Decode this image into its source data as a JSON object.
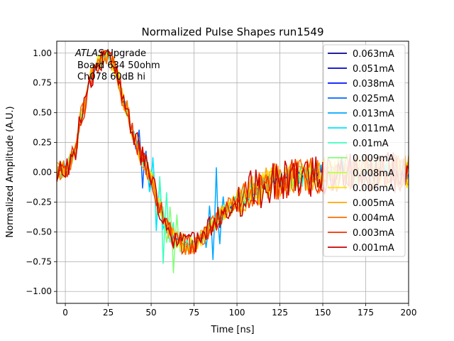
{
  "chart_data": {
    "type": "line",
    "title": "Normalized Pulse Shapes run1549",
    "xlabel": "Time [ns]",
    "ylabel": "Normalized Amplitude (A.U.)",
    "xlim": [
      -5,
      200
    ],
    "ylim": [
      -1.1,
      1.1
    ],
    "xticks": [
      0,
      25,
      50,
      75,
      100,
      125,
      150,
      175,
      200
    ],
    "yticks": [
      -1.0,
      -0.75,
      -0.5,
      -0.25,
      0.0,
      0.25,
      0.5,
      0.75,
      1.0
    ],
    "xtick_labels": [
      "0",
      "25",
      "50",
      "75",
      "100",
      "125",
      "150",
      "175",
      "200"
    ],
    "ytick_labels": [
      "−1.00",
      "−0.75",
      "−0.50",
      "−0.25",
      "0.00",
      "0.25",
      "0.50",
      "0.75",
      "1.00"
    ],
    "grid": true,
    "legend_position": "top-right",
    "annotation": {
      "line1_italic": "ATLAS",
      "line1_rest": " Upgrade",
      "line2": "Board 634 50ohm",
      "line3": "Ch078 60dB hi"
    },
    "series": [
      {
        "name": "0.063mA",
        "color": "#00008f",
        "dip": null
      },
      {
        "name": "0.051mA",
        "color": "#0000cc",
        "dip": null
      },
      {
        "name": "0.038mA",
        "color": "#0010ff",
        "dip": null
      },
      {
        "name": "0.025mA",
        "color": "#0064ff",
        "dip": {
          "t": 45,
          "amp": -0.25
        }
      },
      {
        "name": "0.013mA",
        "color": "#00a8ff",
        "dip": {
          "t": 88,
          "amp": 0.42
        }
      },
      {
        "name": "0.011mA",
        "color": "#00e4ff",
        "dip": {
          "t": 53,
          "amp": -0.3
        }
      },
      {
        "name": "0.01mA",
        "color": "#3cffbc",
        "dip": {
          "t": 57,
          "amp": -0.4
        }
      },
      {
        "name": "0.009mA",
        "color": "#80ff78",
        "dip": {
          "t": 63,
          "amp": -0.35
        }
      },
      {
        "name": "0.008mA",
        "color": "#bcff3c",
        "dip": null
      },
      {
        "name": "0.006mA",
        "color": "#ffe600",
        "dip": null
      },
      {
        "name": "0.005mA",
        "color": "#ffaa00",
        "dip": null
      },
      {
        "name": "0.004mA",
        "color": "#ff6e00",
        "dip": null
      },
      {
        "name": "0.003mA",
        "color": "#f03000",
        "dip": null
      },
      {
        "name": "0.001mA",
        "color": "#c80000",
        "dip": null
      }
    ],
    "pulse_template": {
      "t": [
        -5,
        0,
        5,
        10,
        15,
        20,
        23,
        25,
        28,
        30,
        35,
        40,
        45,
        50,
        55,
        60,
        65,
        70,
        75,
        80,
        85,
        90,
        95,
        100,
        110,
        120,
        130,
        140,
        150,
        160,
        170,
        180,
        190,
        200
      ],
      "amp": [
        0.0,
        0.02,
        0.15,
        0.5,
        0.8,
        0.93,
        0.98,
        0.97,
        0.9,
        0.8,
        0.55,
        0.3,
        0.12,
        -0.05,
        -0.3,
        -0.48,
        -0.58,
        -0.61,
        -0.6,
        -0.54,
        -0.45,
        -0.37,
        -0.3,
        -0.25,
        -0.15,
        -0.08,
        -0.05,
        -0.03,
        -0.01,
        0.0,
        0.0,
        0.0,
        0.0,
        0.0
      ]
    }
  }
}
